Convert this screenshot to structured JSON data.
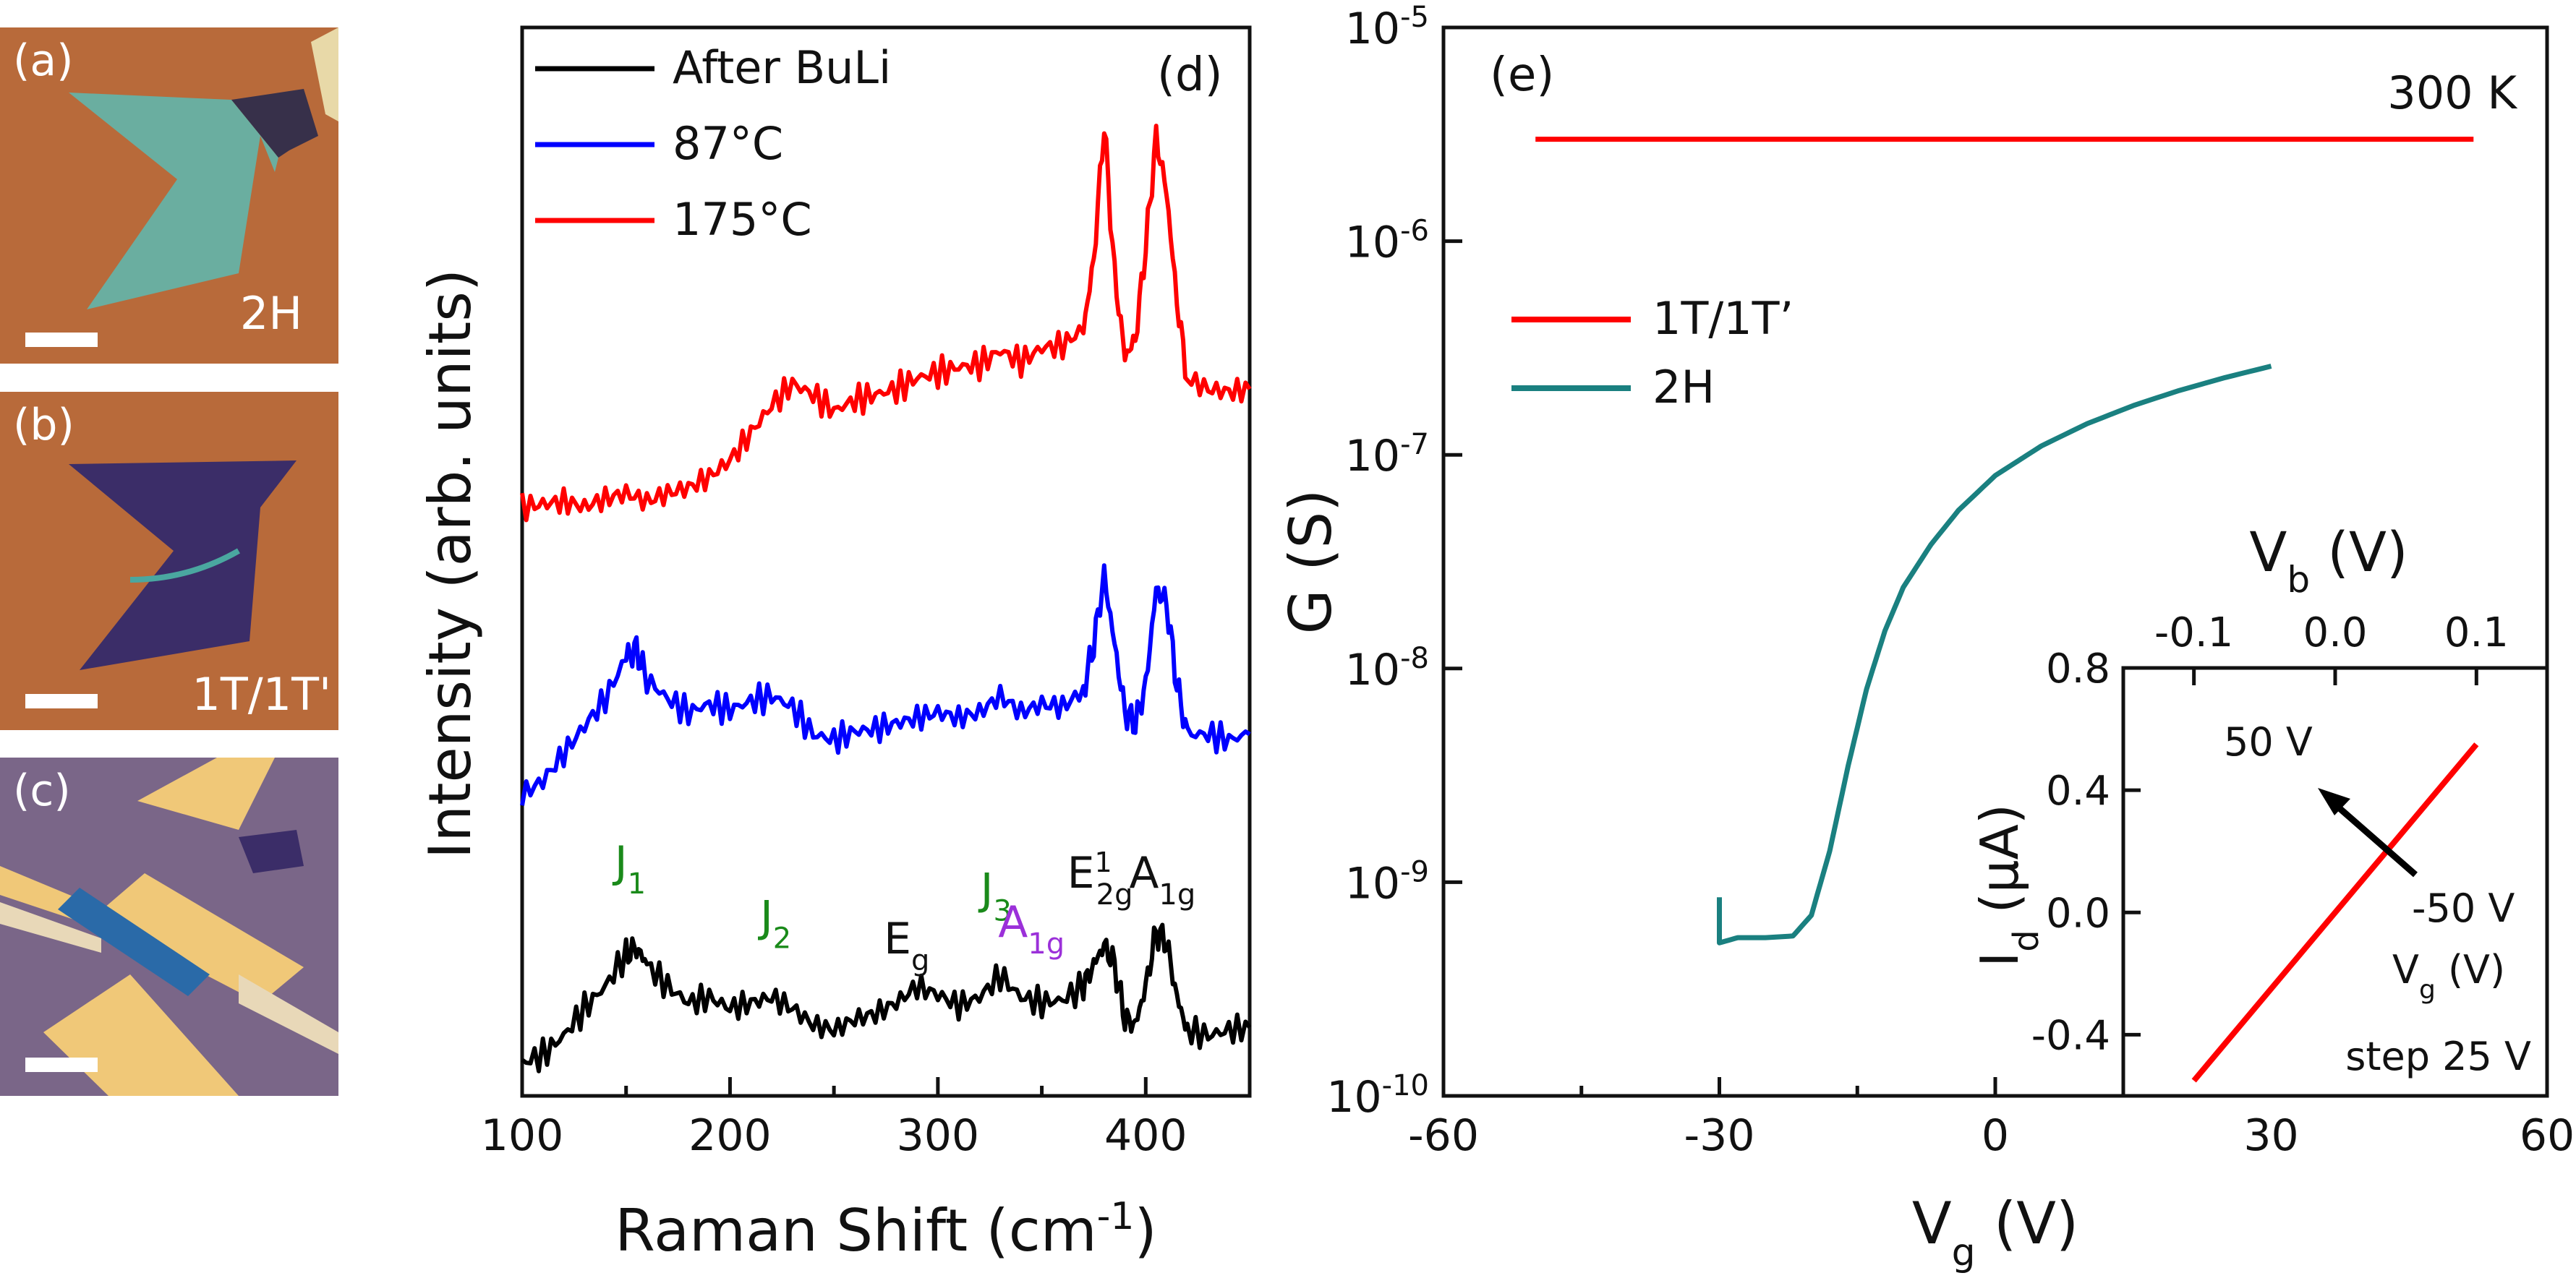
{
  "panels": {
    "a": {
      "label": "(a)",
      "corner": "2H"
    },
    "b": {
      "label": "(b)",
      "corner": "1T/1T'"
    },
    "c": {
      "label": "(c)",
      "corner": ""
    }
  },
  "chart_data": [
    {
      "id": "d",
      "type": "line",
      "panel_label": "(d)",
      "xlabel": "Raman Shift (cm",
      "xlabel_sup": "-1",
      "xlabel_end": ")",
      "ylabel": "Intensity (arb. units)",
      "xlim": [
        100,
        450
      ],
      "xticks": [
        100,
        200,
        300,
        400
      ],
      "legend_position": "top-left",
      "series": [
        {
          "name": "After BuLi",
          "color": "#000000",
          "points": [
            [
              100,
              0.02
            ],
            [
              110,
              0.05
            ],
            [
              120,
              0.12
            ],
            [
              130,
              0.22
            ],
            [
              140,
              0.3
            ],
            [
              150,
              0.42
            ],
            [
              155,
              0.44
            ],
            [
              160,
              0.38
            ],
            [
              170,
              0.3
            ],
            [
              180,
              0.24
            ],
            [
              190,
              0.26
            ],
            [
              200,
              0.22
            ],
            [
              210,
              0.24
            ],
            [
              220,
              0.26
            ],
            [
              230,
              0.22
            ],
            [
              240,
              0.16
            ],
            [
              250,
              0.14
            ],
            [
              260,
              0.18
            ],
            [
              270,
              0.2
            ],
            [
              280,
              0.24
            ],
            [
              290,
              0.3
            ],
            [
              300,
              0.27
            ],
            [
              310,
              0.23
            ],
            [
              320,
              0.26
            ],
            [
              330,
              0.34
            ],
            [
              340,
              0.26
            ],
            [
              350,
              0.24
            ],
            [
              360,
              0.25
            ],
            [
              370,
              0.3
            ],
            [
              375,
              0.38
            ],
            [
              380,
              0.45
            ],
            [
              385,
              0.38
            ],
            [
              390,
              0.18
            ],
            [
              395,
              0.16
            ],
            [
              400,
              0.3
            ],
            [
              405,
              0.5
            ],
            [
              410,
              0.46
            ],
            [
              415,
              0.26
            ],
            [
              420,
              0.14
            ],
            [
              430,
              0.12
            ],
            [
              440,
              0.14
            ],
            [
              450,
              0.15
            ]
          ]
        },
        {
          "name": "87°C",
          "color": "#0000ff",
          "points": [
            [
              100,
              1.0
            ],
            [
              110,
              1.05
            ],
            [
              120,
              1.15
            ],
            [
              130,
              1.25
            ],
            [
              140,
              1.35
            ],
            [
              150,
              1.5
            ],
            [
              155,
              1.53
            ],
            [
              160,
              1.42
            ],
            [
              170,
              1.35
            ],
            [
              180,
              1.3
            ],
            [
              190,
              1.33
            ],
            [
              200,
              1.31
            ],
            [
              210,
              1.34
            ],
            [
              220,
              1.36
            ],
            [
              230,
              1.32
            ],
            [
              240,
              1.22
            ],
            [
              250,
              1.2
            ],
            [
              260,
              1.23
            ],
            [
              270,
              1.24
            ],
            [
              280,
              1.26
            ],
            [
              290,
              1.28
            ],
            [
              300,
              1.3
            ],
            [
              310,
              1.28
            ],
            [
              320,
              1.3
            ],
            [
              330,
              1.36
            ],
            [
              340,
              1.3
            ],
            [
              350,
              1.33
            ],
            [
              360,
              1.32
            ],
            [
              370,
              1.38
            ],
            [
              375,
              1.55
            ],
            [
              380,
              1.8
            ],
            [
              385,
              1.55
            ],
            [
              390,
              1.3
            ],
            [
              395,
              1.26
            ],
            [
              400,
              1.4
            ],
            [
              405,
              1.75
            ],
            [
              410,
              1.7
            ],
            [
              415,
              1.4
            ],
            [
              420,
              1.22
            ],
            [
              430,
              1.22
            ],
            [
              440,
              1.2
            ],
            [
              450,
              1.22
            ]
          ]
        },
        {
          "name": "175°C",
          "color": "#ff0000",
          "points": [
            [
              100,
              2.05
            ],
            [
              110,
              2.06
            ],
            [
              120,
              2.07
            ],
            [
              130,
              2.05
            ],
            [
              140,
              2.08
            ],
            [
              150,
              2.1
            ],
            [
              160,
              2.07
            ],
            [
              170,
              2.1
            ],
            [
              180,
              2.12
            ],
            [
              190,
              2.16
            ],
            [
              200,
              2.22
            ],
            [
              210,
              2.32
            ],
            [
              220,
              2.42
            ],
            [
              230,
              2.5
            ],
            [
              240,
              2.46
            ],
            [
              250,
              2.4
            ],
            [
              260,
              2.44
            ],
            [
              270,
              2.46
            ],
            [
              280,
              2.48
            ],
            [
              290,
              2.52
            ],
            [
              300,
              2.54
            ],
            [
              310,
              2.56
            ],
            [
              320,
              2.57
            ],
            [
              330,
              2.62
            ],
            [
              340,
              2.58
            ],
            [
              350,
              2.63
            ],
            [
              360,
              2.64
            ],
            [
              370,
              2.7
            ],
            [
              375,
              2.95
            ],
            [
              380,
              3.45
            ],
            [
              385,
              2.9
            ],
            [
              390,
              2.6
            ],
            [
              395,
              2.66
            ],
            [
              400,
              3.0
            ],
            [
              405,
              3.4
            ],
            [
              410,
              3.2
            ],
            [
              415,
              2.8
            ],
            [
              420,
              2.52
            ],
            [
              430,
              2.48
            ],
            [
              440,
              2.47
            ],
            [
              450,
              2.48
            ]
          ]
        }
      ],
      "annotations": [
        {
          "text": "J",
          "sub": "1",
          "x": 152,
          "y": 0.7,
          "color": "#1a8a1a"
        },
        {
          "text": "J",
          "sub": "2",
          "x": 222,
          "y": 0.5,
          "color": "#1a8a1a"
        },
        {
          "text": "E",
          "sub": "g",
          "x": 285,
          "y": 0.42,
          "color": "#111111"
        },
        {
          "text": "J",
          "sub": "3",
          "x": 328,
          "y": 0.6,
          "color": "#1a8a1a"
        },
        {
          "text": "A",
          "sub": "1g",
          "x": 345,
          "y": 0.48,
          "color": "#9b30d9"
        },
        {
          "text": "E",
          "sub": "2g",
          "sup": "1",
          "x": 378,
          "y": 0.66,
          "color": "#111111"
        },
        {
          "text": "A",
          "sub": "1g",
          "x": 408,
          "y": 0.66,
          "color": "#111111"
        }
      ]
    },
    {
      "id": "e",
      "type": "line",
      "panel_label": "(e)",
      "xlabel": "V",
      "xlabel_sub": "g",
      "xlabel_end": " (V)",
      "ylabel": "G (S)",
      "yscale": "log",
      "xlim": [
        -60,
        60
      ],
      "ylim": [
        1e-10,
        1e-05
      ],
      "xticks": [
        -60,
        -30,
        0,
        30,
        60
      ],
      "yticks": [
        -10,
        -9,
        -8,
        -7,
        -6,
        -5
      ],
      "temperature_label": "300 K",
      "legend_position": "upper-left",
      "series": [
        {
          "name": "1T/1T’",
          "color": "#ff0000",
          "points": [
            [
              -50,
              3e-06
            ],
            [
              -25,
              3e-06
            ],
            [
              0,
              3e-06
            ],
            [
              25,
              3e-06
            ],
            [
              52,
              3e-06
            ]
          ]
        },
        {
          "name": "2H",
          "color": "#1a8080",
          "points": [
            [
              -30,
              8.5e-10
            ],
            [
              -30,
              5.2e-10
            ],
            [
              -28,
              5.5e-10
            ],
            [
              -25,
              5.5e-10
            ],
            [
              -22,
              5.6e-10
            ],
            [
              -20,
              7e-10
            ],
            [
              -18,
              1.4e-09
            ],
            [
              -16,
              3.5e-09
            ],
            [
              -14,
              8e-09
            ],
            [
              -12,
              1.5e-08
            ],
            [
              -10,
              2.4e-08
            ],
            [
              -7,
              3.8e-08
            ],
            [
              -4,
              5.5e-08
            ],
            [
              0,
              8e-08
            ],
            [
              5,
              1.1e-07
            ],
            [
              10,
              1.4e-07
            ],
            [
              15,
              1.7e-07
            ],
            [
              20,
              2e-07
            ],
            [
              25,
              2.3e-07
            ],
            [
              30,
              2.6e-07
            ]
          ]
        }
      ]
    },
    {
      "id": "e-inset",
      "type": "line",
      "xlabel": "V",
      "xlabel_sub": "b",
      "xlabel_end": " (V)",
      "ylabel": "I",
      "ylabel_sub": "d",
      "ylabel_end": " (μA)",
      "xlim": [
        -0.15,
        0.15
      ],
      "ylim": [
        -0.6,
        0.8
      ],
      "xticks": [
        -0.1,
        0.0,
        0.1
      ],
      "xtick_labels": [
        "-0.1",
        "0.0",
        "0.1"
      ],
      "yticks": [
        -0.4,
        0.0,
        0.4,
        0.8
      ],
      "ytick_labels": [
        "-0.4",
        "0.0",
        "0.4",
        "0.8"
      ],
      "annotations": {
        "top": "50 V",
        "bottom": "-50 V",
        "vg": "V",
        "vg_sub": "g",
        "vg_end": "  (V)",
        "step": "step 25 V"
      },
      "series": [
        {
          "name": "",
          "color": "#ff0000",
          "points": [
            [
              -0.1,
              -0.55
            ],
            [
              0.1,
              0.55
            ]
          ]
        }
      ]
    }
  ]
}
